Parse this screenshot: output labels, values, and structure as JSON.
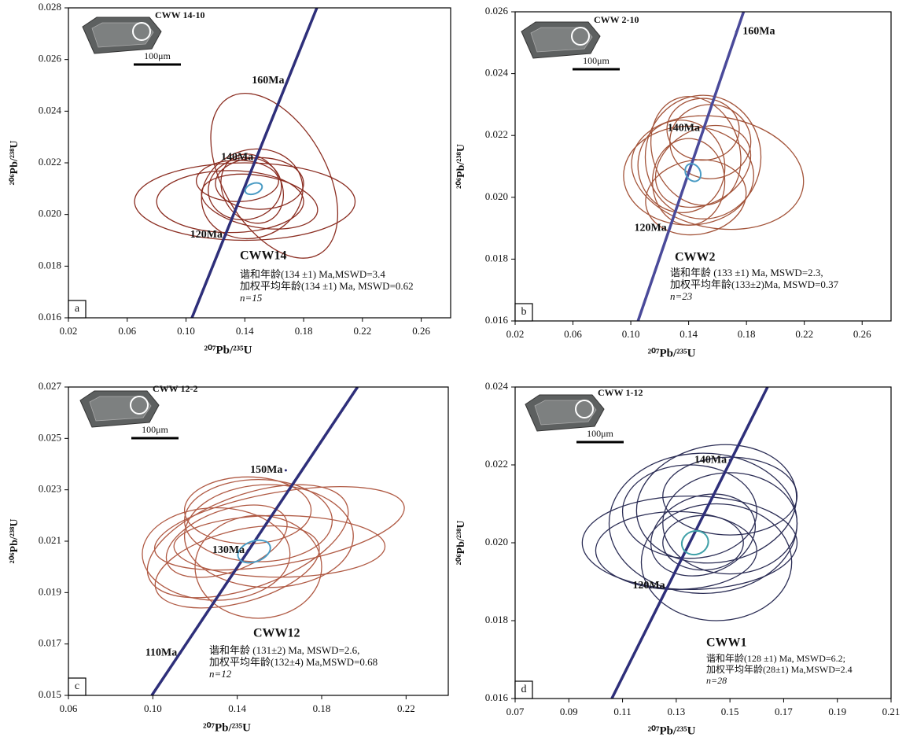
{
  "chart_data": [
    {
      "type": "concordia",
      "panel": "a",
      "sample": "CWW14",
      "inset_label": "CWW 14-10",
      "scale_label": "100μm",
      "x_label": "²⁰⁷Pb/²³⁵U",
      "y_label": "²⁰⁶Pb/²³⁸U",
      "xlim": [
        0.02,
        0.28
      ],
      "ylim": [
        0.016,
        0.028
      ],
      "xticks": [
        0.02,
        0.06,
        {
          "value": 0.1,
          "label": "0.10"
        },
        0.14,
        0.18,
        0.22,
        0.26
      ],
      "yticks": [
        0.016,
        0.018,
        {
          "value": 0.02,
          "label": "0.020"
        },
        0.022,
        0.024,
        0.026,
        0.028
      ],
      "line_color": "#2e2f7a",
      "color": "#8b2e22",
      "mean_color": "#4a9bc4",
      "concordia": {
        "x": [
          0.104,
          0.189
        ],
        "y": [
          0.016,
          0.028
        ]
      },
      "age_points": [
        {
          "label": "160Ma",
          "x": 0.169,
          "y": 0.02517
        },
        {
          "label": "140Ma",
          "x": 0.148,
          "y": 0.0222
        },
        {
          "label": "120Ma",
          "x": 0.127,
          "y": 0.0192
        }
      ],
      "ellipses": [
        {
          "x": 0.16,
          "y": 0.0215,
          "rx": 0.035,
          "ry": 0.0035,
          "angle": 30
        },
        {
          "x": 0.14,
          "y": 0.0205,
          "rx": 0.075,
          "ry": 0.0015,
          "angle": 0
        },
        {
          "x": 0.13,
          "y": 0.0205,
          "rx": 0.05,
          "ry": 0.0012,
          "angle": 0
        },
        {
          "x": 0.145,
          "y": 0.0208,
          "rx": 0.035,
          "ry": 0.0017,
          "angle": 20
        },
        {
          "x": 0.14,
          "y": 0.021,
          "rx": 0.025,
          "ry": 0.0012,
          "angle": 10
        },
        {
          "x": 0.15,
          "y": 0.0212,
          "rx": 0.03,
          "ry": 0.001,
          "angle": 0
        },
        {
          "x": 0.145,
          "y": 0.021,
          "rx": 0.02,
          "ry": 0.0014,
          "angle": 30
        },
        {
          "x": 0.15,
          "y": 0.0205,
          "rx": 0.04,
          "ry": 0.001,
          "angle": -10
        },
        {
          "x": 0.135,
          "y": 0.0213,
          "rx": 0.028,
          "ry": 0.0008,
          "angle": 0
        }
      ],
      "mean_ellipse": {
        "x": 0.146,
        "y": 0.021,
        "rx": 0.006,
        "ry": 0.0002,
        "angle": 20
      },
      "notes": [
        "谐和年龄(134 ±1) Ma,MSWD=3.4",
        "加权平均年龄(134 ±1) Ma, MSWD=0.62",
        "n=15"
      ]
    },
    {
      "type": "concordia",
      "panel": "b",
      "sample": "CWW2",
      "inset_label": "CWW 2-10",
      "scale_label": "100μm",
      "x_label": "²⁰⁷Pb/²³⁵U",
      "y_label": "²⁰⁶Pb/²³⁸U",
      "xlim": [
        0.02,
        0.28
      ],
      "ylim": [
        0.016,
        0.026
      ],
      "xticks": [
        0.02,
        0.06,
        {
          "value": 0.1,
          "label": "0.10"
        },
        0.14,
        0.18,
        0.22,
        0.26
      ],
      "yticks": [
        0.016,
        0.018,
        {
          "value": 0.02,
          "label": "0.020"
        },
        0.022,
        0.024,
        0.026
      ],
      "line_color": "#4a4a9a",
      "color": "#a3543a",
      "mean_color": "#4a9bc4",
      "concordia": {
        "x": [
          0.105,
          0.178
        ],
        "y": [
          0.016,
          0.026
        ]
      },
      "age_points": [
        {
          "label": "160Ma",
          "x": 0.173,
          "y": 0.02536
        },
        {
          "label": "140Ma",
          "x": 0.15,
          "y": 0.02223
        },
        {
          "label": "120Ma",
          "x": 0.127,
          "y": 0.019
        }
      ],
      "ellipses": [
        {
          "x": 0.15,
          "y": 0.0213,
          "rx": 0.04,
          "ry": 0.002,
          "angle": 0
        },
        {
          "x": 0.14,
          "y": 0.0207,
          "rx": 0.045,
          "ry": 0.0016,
          "angle": 0
        },
        {
          "x": 0.16,
          "y": 0.0208,
          "rx": 0.06,
          "ry": 0.0018,
          "angle": -10
        },
        {
          "x": 0.145,
          "y": 0.0215,
          "rx": 0.03,
          "ry": 0.0018,
          "angle": 20
        },
        {
          "x": 0.14,
          "y": 0.0205,
          "rx": 0.025,
          "ry": 0.0014,
          "angle": 0
        },
        {
          "x": 0.15,
          "y": 0.021,
          "rx": 0.035,
          "ry": 0.0012,
          "angle": 30
        },
        {
          "x": 0.135,
          "y": 0.021,
          "rx": 0.03,
          "ry": 0.0015,
          "angle": 10
        },
        {
          "x": 0.155,
          "y": 0.0218,
          "rx": 0.028,
          "ry": 0.0012,
          "angle": 0
        },
        {
          "x": 0.145,
          "y": 0.02,
          "rx": 0.035,
          "ry": 0.0012,
          "angle": 10
        },
        {
          "x": 0.15,
          "y": 0.0222,
          "rx": 0.025,
          "ry": 0.001,
          "angle": 0
        }
      ],
      "mean_ellipse": {
        "x": 0.143,
        "y": 0.0208,
        "rx": 0.005,
        "ry": 0.0003,
        "angle": 30
      },
      "notes": [
        "谐和年龄 (133 ±1)  Ma,     MSWD=2.3,",
        "加权平均年龄(133±2)Ma, MSWD=0.37",
        "n=23"
      ]
    },
    {
      "type": "concordia",
      "panel": "c",
      "sample": "CWW12",
      "inset_label": "CWW 12-2",
      "scale_label": "100μm",
      "x_label": "²⁰⁷Pb/²³⁵U",
      "y_label": "²⁰⁶Pb/²³⁸U",
      "xlim": [
        0.06,
        0.24
      ],
      "ylim": [
        0.015,
        0.027
      ],
      "xticks": [
        0.06,
        {
          "value": 0.1,
          "label": "0.10"
        },
        0.14,
        0.18,
        0.22
      ],
      "yticks": [
        0.015,
        0.017,
        0.019,
        0.021,
        0.023,
        0.025,
        0.027
      ],
      "line_color": "#2e2f7a",
      "color": "#b05a44",
      "mean_color": "#4a9bc4",
      "concordia": {
        "x": [
          0.0995,
          0.197
        ],
        "y": [
          0.015,
          0.027
        ]
      },
      "age_points": [
        {
          "label": "150Ma",
          "x": 0.163,
          "y": 0.02376
        },
        {
          "label": "130Ma",
          "x": 0.145,
          "y": 0.02064
        },
        {
          "label": "110Ma",
          "x": 0.113,
          "y": 0.01665
        }
      ],
      "ellipses": [
        {
          "x": 0.16,
          "y": 0.0215,
          "rx": 0.06,
          "ry": 0.0014,
          "angle": 10
        },
        {
          "x": 0.145,
          "y": 0.021,
          "rx": 0.05,
          "ry": 0.0018,
          "angle": 20
        },
        {
          "x": 0.13,
          "y": 0.0205,
          "rx": 0.035,
          "ry": 0.0018,
          "angle": 0
        },
        {
          "x": 0.155,
          "y": 0.0212,
          "rx": 0.04,
          "ry": 0.002,
          "angle": 0
        },
        {
          "x": 0.14,
          "y": 0.02,
          "rx": 0.04,
          "ry": 0.0014,
          "angle": 15
        },
        {
          "x": 0.15,
          "y": 0.0218,
          "rx": 0.035,
          "ry": 0.0016,
          "angle": 0
        },
        {
          "x": 0.16,
          "y": 0.0208,
          "rx": 0.05,
          "ry": 0.0012,
          "angle": 0
        },
        {
          "x": 0.135,
          "y": 0.021,
          "rx": 0.03,
          "ry": 0.0012,
          "angle": 20
        },
        {
          "x": 0.15,
          "y": 0.02,
          "rx": 0.03,
          "ry": 0.002,
          "angle": 0
        },
        {
          "x": 0.145,
          "y": 0.0222,
          "rx": 0.03,
          "ry": 0.0013,
          "angle": 0
        }
      ],
      "mean_ellipse": {
        "x": 0.148,
        "y": 0.0206,
        "rx": 0.008,
        "ry": 0.0004,
        "angle": 20
      },
      "notes": [
        "谐和年龄 (131±2) Ma,     MSWD=2.6,",
        "加权平均年龄(132±4) Ma,MSWD=0.68",
        "n=12"
      ]
    },
    {
      "type": "concordia",
      "panel": "d",
      "sample": "CWW1",
      "inset_label": "CWW 1-12",
      "scale_label": "100μm",
      "x_label": "²⁰⁷Pb/²³⁵U",
      "y_label": "²⁰⁶Pb/²³⁸U",
      "xlim": [
        0.07,
        0.21
      ],
      "ylim": [
        0.016,
        0.024
      ],
      "xticks": [
        0.07,
        0.09,
        0.11,
        0.13,
        0.15,
        0.17,
        0.19,
        0.21
      ],
      "yticks": [
        0.016,
        0.018,
        {
          "value": 0.02,
          "label": "0.020"
        },
        0.022,
        0.024
      ],
      "line_color": "#2e2f7a",
      "color": "#2b2d55",
      "mean_color": "#3fa0a8",
      "concordia": {
        "x": [
          0.106,
          0.164
        ],
        "y": [
          0.016,
          0.024
        ]
      },
      "age_points": [
        {
          "label": "140Ma",
          "x": 0.15,
          "y": 0.02212
        },
        {
          "label": "120Ma",
          "x": 0.127,
          "y": 0.01889
        }
      ],
      "ellipses": [
        {
          "x": 0.14,
          "y": 0.0205,
          "rx": 0.035,
          "ry": 0.0018,
          "angle": 0
        },
        {
          "x": 0.135,
          "y": 0.02,
          "rx": 0.04,
          "ry": 0.0012,
          "angle": 0
        },
        {
          "x": 0.145,
          "y": 0.021,
          "rx": 0.03,
          "ry": 0.0015,
          "angle": 10
        },
        {
          "x": 0.13,
          "y": 0.0198,
          "rx": 0.03,
          "ry": 0.001,
          "angle": 0
        },
        {
          "x": 0.15,
          "y": 0.0205,
          "rx": 0.025,
          "ry": 0.0013,
          "angle": 0
        },
        {
          "x": 0.14,
          "y": 0.0202,
          "rx": 0.02,
          "ry": 0.001,
          "angle": 20
        },
        {
          "x": 0.145,
          "y": 0.0195,
          "rx": 0.028,
          "ry": 0.0015,
          "angle": 0
        },
        {
          "x": 0.135,
          "y": 0.0208,
          "rx": 0.025,
          "ry": 0.0012,
          "angle": 0
        },
        {
          "x": 0.14,
          "y": 0.02,
          "rx": 0.015,
          "ry": 0.0007,
          "angle": 0
        },
        {
          "x": 0.15,
          "y": 0.0212,
          "rx": 0.025,
          "ry": 0.001,
          "angle": 0
        }
      ],
      "mean_ellipse": {
        "x": 0.137,
        "y": 0.02,
        "rx": 0.005,
        "ry": 0.0003,
        "angle": 20
      },
      "notes": [
        "谐和年龄(128 ±1) Ma, MSWD=6.2;",
        "加权平均年龄(28±1) Ma,MSWD=2.4",
        "n=28"
      ]
    }
  ]
}
